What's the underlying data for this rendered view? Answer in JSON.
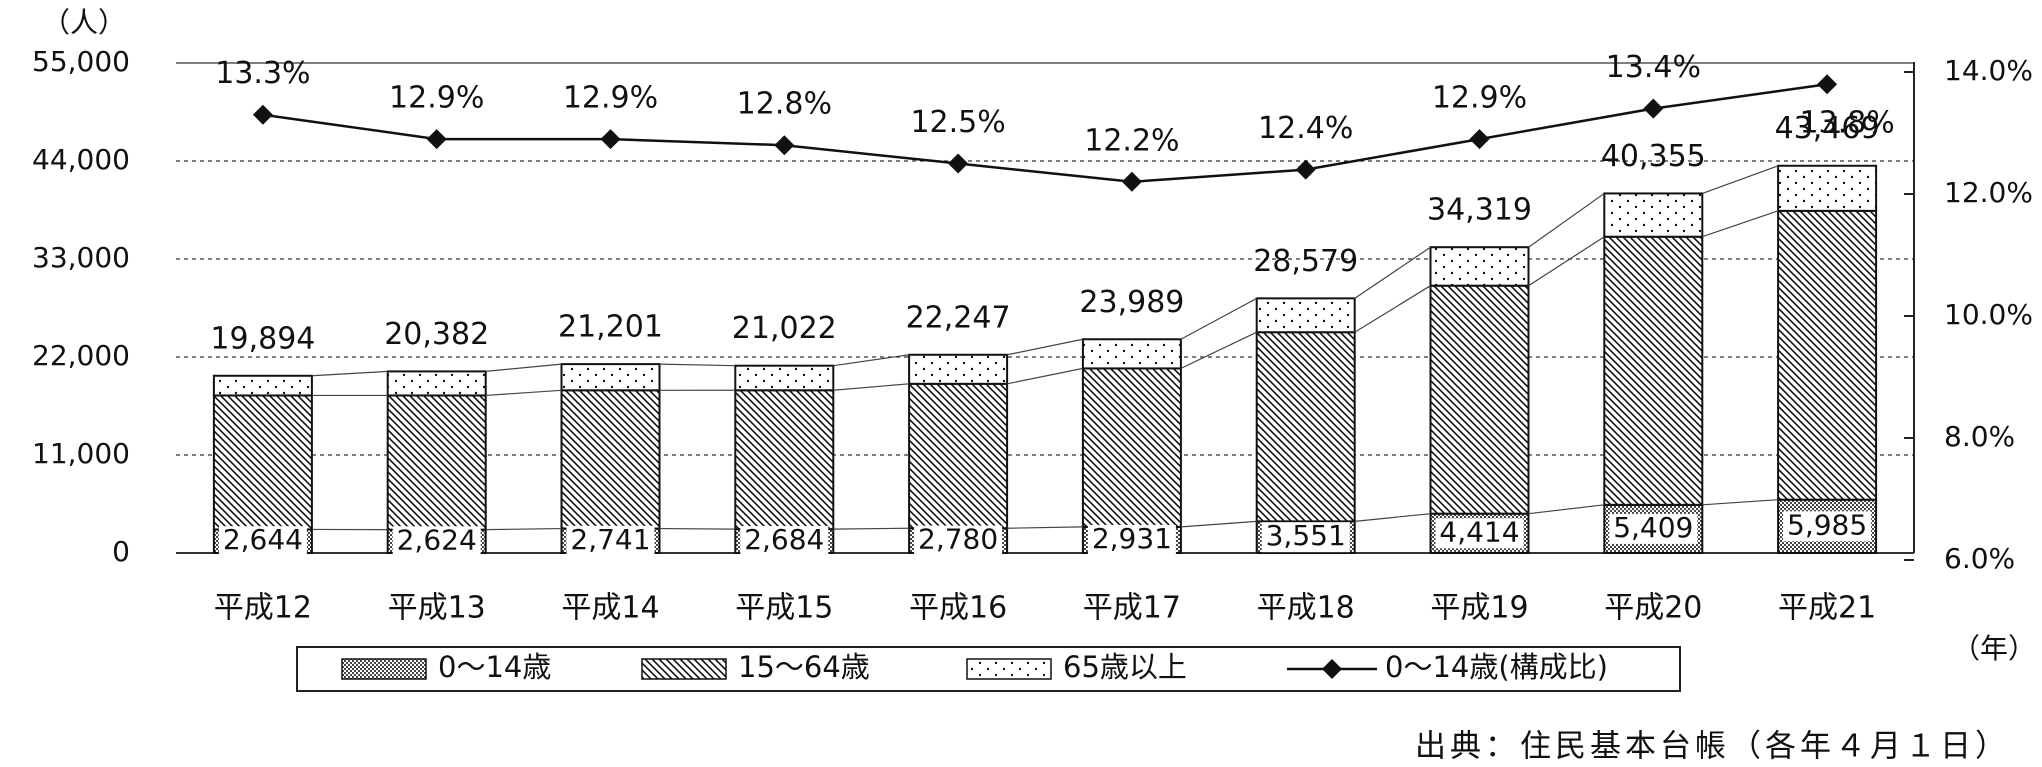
{
  "chart_data": {
    "type": "bar",
    "stacked": true,
    "y_unit": "（人）",
    "x_unit": "（年）",
    "source": "出典：住民基本台帳（各年４月１日）",
    "categories": [
      "平成12",
      "平成13",
      "平成14",
      "平成15",
      "平成16",
      "平成17",
      "平成18",
      "平成19",
      "平成20",
      "平成21"
    ],
    "series": [
      {
        "name": "0～14歳",
        "color": "#444444",
        "pattern": "crosshatch",
        "values": [
          2644,
          2624,
          2741,
          2684,
          2780,
          2931,
          3551,
          4414,
          5409,
          5985
        ],
        "value_labels": [
          "2,644",
          "2,624",
          "2,741",
          "2,684",
          "2,780",
          "2,931",
          "3,551",
          "4,414",
          "5,409",
          "5,985"
        ]
      },
      {
        "name": "15～64歳",
        "color": "#111111",
        "pattern": "diagonal",
        "values": [
          15040,
          15060,
          15520,
          15580,
          16210,
          17790,
          21230,
          25590,
          30090,
          32420
        ]
      },
      {
        "name": "65歳以上",
        "color": "#111111",
        "pattern": "dots",
        "values": [
          2210,
          2700,
          2940,
          2760,
          3260,
          3270,
          3800,
          4320,
          4860,
          5060
        ]
      },
      {
        "name": "0～14歳(構成比)",
        "type": "line",
        "axis": "y2",
        "color": "#111111",
        "values": [
          13.3,
          12.9,
          12.9,
          12.8,
          12.5,
          12.2,
          12.4,
          12.9,
          13.4,
          13.8
        ],
        "value_labels": [
          "13.3%",
          "12.9%",
          "12.9%",
          "12.8%",
          "12.5%",
          "12.2%",
          "12.4%",
          "12.9%",
          "13.4%",
          "13.8%"
        ]
      }
    ],
    "totals": {
      "values": [
        19894,
        20382,
        21201,
        21022,
        22247,
        23989,
        28579,
        34319,
        40355,
        43469
      ],
      "value_labels": [
        "19,894",
        "20,382",
        "21,201",
        "21,022",
        "22,247",
        "23,989",
        "28,579",
        "34,319",
        "40,355",
        "43,469"
      ]
    },
    "ylim": [
      0,
      55000
    ],
    "yticks": [
      0,
      {
        "value": 11000,
        "label": "11,000"
      },
      {
        "value": 22000,
        "label": "22,000"
      },
      {
        "value": 33000,
        "label": "33,000"
      },
      {
        "value": 44000,
        "label": "44,000"
      },
      {
        "value": 55000,
        "label": "55,000"
      }
    ],
    "y2lim": [
      6,
      14
    ],
    "y2ticks": [
      {
        "value": 6,
        "label": "6.0%"
      },
      {
        "value": 8,
        "label": "8.0%"
      },
      {
        "value": 10,
        "label": "10.0%"
      },
      {
        "value": 12,
        "label": "12.0%"
      },
      {
        "value": 14,
        "label": "14.0%"
      }
    ],
    "grid": true,
    "legend": "bottom"
  }
}
